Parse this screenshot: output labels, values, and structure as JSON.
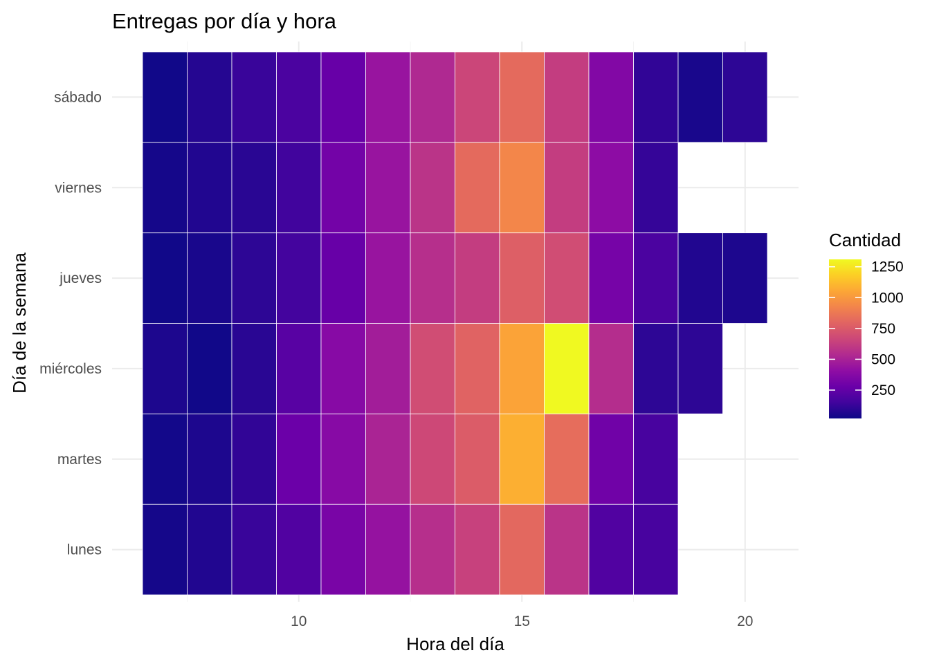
{
  "chart_data": {
    "type": "heatmap",
    "title": "Entregas por día y hora",
    "xlabel": "Hora del día",
    "ylabel": "Día de la semana",
    "x": [
      7,
      8,
      9,
      10,
      11,
      12,
      13,
      14,
      15,
      16,
      17,
      18,
      19,
      20
    ],
    "xlim": [
      6.5,
      20.5
    ],
    "x_ticks": [
      10,
      15,
      20
    ],
    "y_categories": [
      "lunes",
      "martes",
      "miércoles",
      "jueves",
      "viernes",
      "sábado"
    ],
    "values": [
      [
        40,
        70,
        130,
        200,
        330,
        430,
        560,
        640,
        810,
        580,
        200,
        170,
        null,
        null
      ],
      [
        35,
        60,
        110,
        280,
        380,
        510,
        670,
        760,
        1080,
        830,
        300,
        170,
        null,
        null
      ],
      [
        60,
        30,
        90,
        220,
        380,
        480,
        690,
        790,
        1040,
        1310,
        550,
        100,
        100,
        null
      ],
      [
        30,
        50,
        100,
        160,
        270,
        440,
        560,
        620,
        770,
        690,
        320,
        180,
        70,
        60
      ],
      [
        40,
        70,
        90,
        150,
        310,
        440,
        580,
        820,
        930,
        620,
        400,
        120,
        null,
        null
      ],
      [
        30,
        80,
        130,
        180,
        270,
        440,
        530,
        660,
        820,
        620,
        360,
        110,
        50,
        100
      ]
    ],
    "legend": {
      "title": "Cantidad",
      "ticks": [
        250,
        500,
        750,
        1000,
        1250
      ],
      "range": [
        20,
        1310
      ],
      "position": "right"
    },
    "colormap": "plasma",
    "grid": true
  }
}
